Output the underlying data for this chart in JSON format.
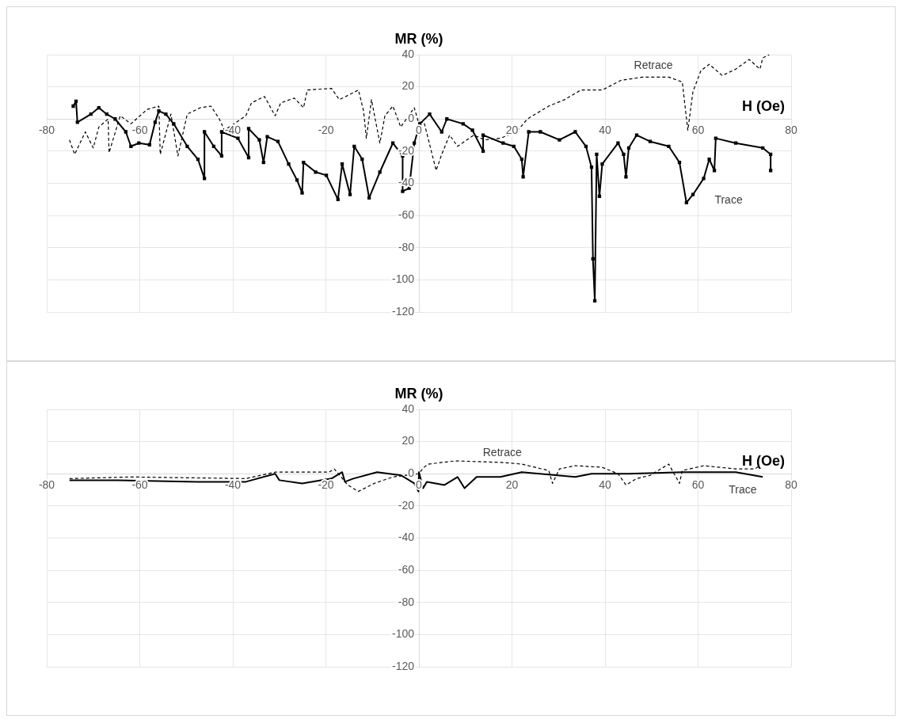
{
  "chart_data": [
    {
      "type": "line",
      "ylabel": "MR (%)",
      "xlabel": "H (Oe)",
      "xlim": [
        -80,
        80
      ],
      "xticks": [
        -80,
        -60,
        -40,
        -20,
        0,
        20,
        40,
        60,
        80
      ],
      "ylim": [
        -120,
        40
      ],
      "yticks": [
        -120,
        -100,
        -80,
        -60,
        -40,
        -20,
        0,
        20,
        40
      ],
      "grid": true,
      "legend": false,
      "series": [
        {
          "name": "Trace",
          "color": "#000000",
          "marker": "square",
          "line_style": "solid",
          "x": [
            -74.3,
            -73.7,
            -73.4,
            -70.5,
            -68.8,
            -67.1,
            -65.3,
            -63.0,
            -61.9,
            -60.2,
            -57.9,
            -56.7,
            -55.9,
            -54.4,
            -52.7,
            -49.8,
            -47.5,
            -46.1,
            -46.1,
            -44.1,
            -42.4,
            -42.4,
            -38.9,
            -36.6,
            -36.6,
            -34.3,
            -33.4,
            -32.6,
            -30.3,
            -28.0,
            -26.2,
            -25.1,
            -24.8,
            -22.2,
            -19.9,
            -17.4,
            -16.5,
            -14.8,
            -13.9,
            -12.2,
            -10.7,
            -8.4,
            -5.6,
            -3.5,
            -3.5,
            -2.1,
            -1.0,
            0.2,
            2.3,
            4.9,
            6.0,
            9.5,
            11.5,
            13.8,
            13.8,
            18.1,
            20.4,
            22.1,
            22.4,
            23.6,
            26.1,
            30.2,
            33.6,
            35.9,
            37.1,
            37.4,
            37.8,
            38.2,
            38.8,
            39.4,
            42.8,
            44.0,
            44.5,
            45.1,
            46.8,
            49.7,
            53.7,
            56.0,
            57.5,
            58.9,
            61.2,
            62.4,
            63.5,
            63.8,
            68.1,
            73.9,
            75.6,
            75.6
          ],
          "values": [
            8,
            11,
            -2,
            3,
            7,
            3,
            0,
            -8,
            -17,
            -15,
            -16,
            -2,
            5,
            3,
            -3,
            -17,
            -25,
            -37,
            -8,
            -17,
            -23,
            -8,
            -12,
            -24,
            -6,
            -13,
            -27,
            -11,
            -14,
            -28,
            -38,
            -46,
            -27,
            -33,
            -35,
            -50,
            -28,
            -47,
            -17,
            -25,
            -49,
            -33,
            -15,
            -23,
            -45,
            -43,
            -15,
            -3,
            3,
            -8,
            0,
            -3,
            -7,
            -20,
            -10,
            -15,
            -17,
            -25,
            -36,
            -8,
            -8,
            -13,
            -8,
            -17,
            -30,
            -87,
            -113,
            -22,
            -48,
            -28,
            -15,
            -22,
            -36,
            -18,
            -10,
            -14,
            -17,
            -27,
            -52,
            -47,
            -37,
            -25,
            -32,
            -12,
            -15,
            -18,
            -22,
            -32
          ]
        },
        {
          "name": "Retrace",
          "color": "#000000",
          "marker": "none",
          "line_style": "dashed",
          "x": [
            -75.1,
            -74.0,
            -71.7,
            -70.0,
            -68.8,
            -66.8,
            -66.6,
            -64.2,
            -61.9,
            -58.4,
            -55.9,
            -55.6,
            -53.3,
            -51.8,
            -49.8,
            -47.0,
            -44.7,
            -42.9,
            -41.8,
            -37.2,
            -36.0,
            -33.2,
            -30.9,
            -29.7,
            -26.8,
            -24.8,
            -24.0,
            -18.8,
            -17.1,
            -13.0,
            -11.9,
            -11.3,
            -10.2,
            -8.4,
            -7.3,
            -5.6,
            -3.9,
            -1.0,
            -0.1,
            1.1,
            3.7,
            4.9,
            6.6,
            8.3,
            11.8,
            14.1,
            17.5,
            21.0,
            23.3,
            27.9,
            31.3,
            34.8,
            39.4,
            43.4,
            48.0,
            53.7,
            56.6,
            57.8,
            58.9,
            60.6,
            62.4,
            65.2,
            68.1,
            71.0,
            73.3,
            73.9,
            75.3
          ],
          "values": [
            -13,
            -22,
            -8,
            -18,
            -5,
            0,
            -21,
            2,
            -3,
            6,
            8,
            -22,
            3,
            -23,
            3,
            7,
            8,
            0,
            -7,
            2,
            10,
            14,
            2,
            10,
            13,
            7,
            18,
            19,
            12,
            18,
            5,
            -12,
            12,
            -15,
            2,
            8,
            -5,
            7,
            -2,
            -2,
            -32,
            -22,
            -10,
            -17,
            -10,
            -13,
            -12,
            -8,
            0,
            8,
            12,
            18,
            18,
            24,
            26,
            26,
            23,
            -7,
            17,
            30,
            34,
            27,
            31,
            37,
            31,
            38,
            40
          ]
        }
      ]
    },
    {
      "type": "line",
      "ylabel": "MR (%)",
      "xlabel": "H (Oe)",
      "xlim": [
        -80,
        80
      ],
      "xticks": [
        -80,
        -60,
        -40,
        -20,
        0,
        20,
        40,
        60,
        80
      ],
      "ylim": [
        -120,
        40
      ],
      "yticks": [
        -120,
        -100,
        -80,
        -60,
        -40,
        -20,
        0,
        20,
        40
      ],
      "grid": true,
      "legend": false,
      "series": [
        {
          "name": "Trace",
          "color": "#000000",
          "marker": "none",
          "line_style": "solid",
          "x": [
            -75.1,
            -64.7,
            -47.5,
            -37.2,
            -30.9,
            -30.0,
            -25.1,
            -18.8,
            -16.5,
            -15.9,
            -14.1,
            -9.0,
            -3.8,
            -1.0,
            -0.1,
            0.0,
            0.9,
            1.7,
            5.5,
            8.3,
            9.8,
            12.4,
            17.5,
            22.1,
            33.6,
            37.1,
            45.1,
            56.6,
            68.1,
            73.9
          ],
          "values": [
            -4,
            -4,
            -5,
            -5,
            0,
            -4,
            -6,
            -3,
            1,
            -5,
            -3,
            1,
            -1,
            -6,
            -11,
            1,
            -9,
            -5,
            -7,
            -2,
            -9,
            -2,
            -2,
            1,
            -2,
            0,
            0,
            1,
            1,
            -2
          ]
        },
        {
          "name": "Retrace",
          "color": "#000000",
          "marker": "none",
          "line_style": "dashed",
          "x": [
            -75.1,
            -61.9,
            -37.2,
            -30.9,
            -29.1,
            -19.3,
            -18.2,
            -17.0,
            -15.3,
            -13.0,
            -9.6,
            -5.6,
            -0.1,
            1.1,
            2.0,
            7.8,
            18.1,
            22.1,
            27.9,
            28.7,
            30.2,
            33.6,
            39.4,
            42.8,
            44.5,
            46.8,
            49.7,
            53.7,
            56.0,
            56.6,
            61.2,
            68.1,
            72.2,
            73.3
          ],
          "values": [
            -3,
            -2,
            -3,
            1,
            1,
            1,
            3,
            -1,
            -7,
            -11,
            -6,
            -2,
            0,
            4,
            6,
            8,
            7,
            6,
            2,
            -6,
            3,
            5,
            4,
            0,
            -7,
            -3,
            -1,
            6,
            -6,
            2,
            5,
            3,
            3,
            5
          ]
        }
      ]
    }
  ]
}
